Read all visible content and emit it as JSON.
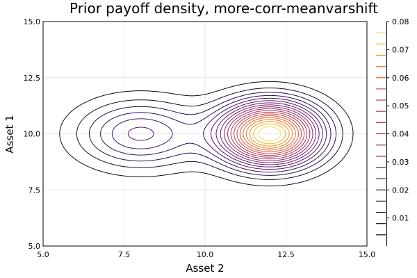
{
  "chart_data": {
    "type": "contour",
    "title": "Prior payoff density, more-corr-meanvarshift",
    "xlabel": "Asset 2",
    "ylabel": "Asset 1",
    "xlim": [
      5.0,
      15.0
    ],
    "ylim": [
      5.0,
      15.0
    ],
    "xticks": [
      "5.0",
      "7.5",
      "10.0",
      "12.5",
      "15.0"
    ],
    "yticks": [
      "5.0",
      "7.5",
      "10.0",
      "12.5",
      "15.0"
    ],
    "grid": true,
    "colorbar": {
      "range": [
        0.0,
        0.08
      ],
      "tick_labels": [
        "0.01",
        "0.02",
        "0.03",
        "0.04",
        "0.05",
        "0.06",
        "0.07",
        "0.08"
      ],
      "colormap": "inferno"
    },
    "modes": [
      {
        "x": 8.0,
        "y": 10.0,
        "peak_density": 0.025
      },
      {
        "x": 12.0,
        "y": 10.0,
        "peak_density": 0.08
      }
    ],
    "contour_levels": [
      0.004,
      0.008,
      0.012,
      0.016,
      0.02,
      0.024,
      0.028,
      0.032,
      0.036,
      0.04,
      0.044,
      0.048,
      0.052,
      0.056,
      0.06,
      0.064,
      0.068,
      0.072,
      0.076
    ]
  }
}
